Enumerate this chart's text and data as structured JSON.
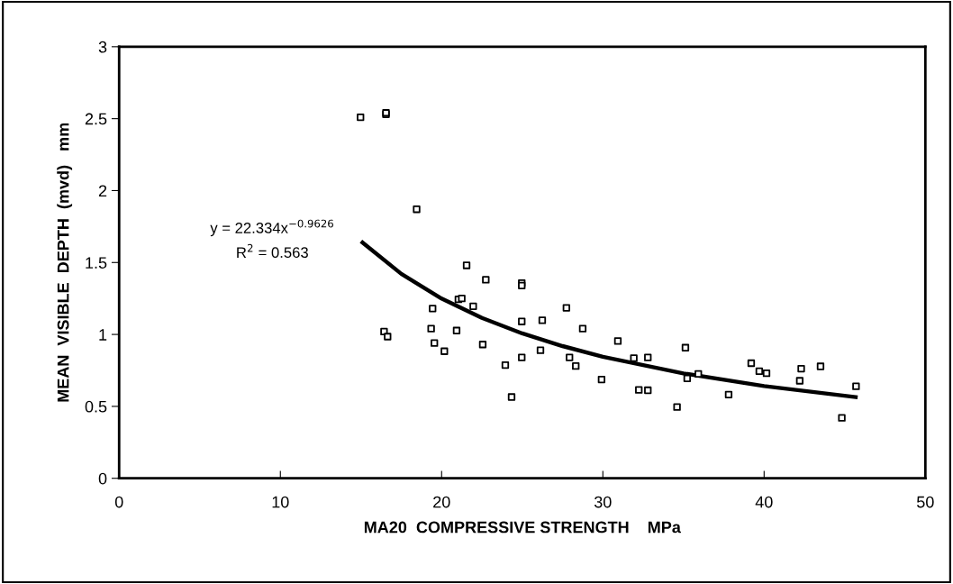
{
  "chart_data": {
    "type": "scatter",
    "xlabel": "MA20  COMPRESSIVE STRENGTH    MPa",
    "ylabel": "MEAN  VISIBLE  DEPTH  (mvd)   mm",
    "xlim": [
      0,
      50
    ],
    "xticks": [
      0,
      10,
      20,
      30,
      40,
      50
    ],
    "ylim": [
      0,
      3
    ],
    "yticks": [
      0,
      0.5,
      1,
      1.5,
      2,
      2.5,
      3
    ],
    "grid": false,
    "annotations": [
      "y = 22.334x$^{−0.9626}$",
      "R$^{2}$ = 0.563"
    ],
    "series": [
      {
        "marker": "square",
        "color": "#000000",
        "x": [
          14.97,
          16.55,
          16.55,
          18.45,
          16.43,
          16.65,
          21.55,
          22.74,
          24.97,
          24.97,
          19.44,
          21.04,
          21.25,
          21.96,
          19.35,
          20.93,
          19.55,
          20.17,
          22.55,
          23.95,
          24.34,
          24.97,
          24.97,
          26.24,
          26.13,
          27.74,
          28.75,
          27.93,
          28.32,
          29.92,
          30.93,
          31.92,
          32.23,
          32.79,
          32.79,
          35.12,
          34.6,
          35.23,
          35.92,
          37.8,
          39.2,
          39.7,
          40.15,
          42.3,
          42.21,
          43.5,
          44.82,
          45.7
        ],
        "values": [
          2.51,
          2.53,
          2.54,
          1.87,
          1.02,
          0.985,
          1.48,
          1.38,
          1.357,
          1.34,
          1.18,
          1.244,
          1.25,
          1.196,
          1.04,
          1.027,
          0.94,
          0.883,
          0.93,
          0.787,
          0.565,
          1.09,
          0.84,
          1.098,
          0.89,
          1.185,
          1.04,
          0.84,
          0.78,
          0.687,
          0.954,
          0.835,
          0.614,
          0.612,
          0.84,
          0.908,
          0.495,
          0.695,
          0.726,
          0.582,
          0.8,
          0.745,
          0.73,
          0.762,
          0.678,
          0.778,
          0.42,
          0.639
        ]
      },
      {
        "type": "line",
        "color": "#000000",
        "x": [
          15,
          17.5,
          20,
          22.5,
          25,
          27.5,
          30,
          35,
          40,
          45.8
        ],
        "values": [
          1.648,
          1.421,
          1.249,
          1.115,
          1.007,
          0.919,
          0.845,
          0.729,
          0.641,
          0.563
        ]
      }
    ]
  }
}
